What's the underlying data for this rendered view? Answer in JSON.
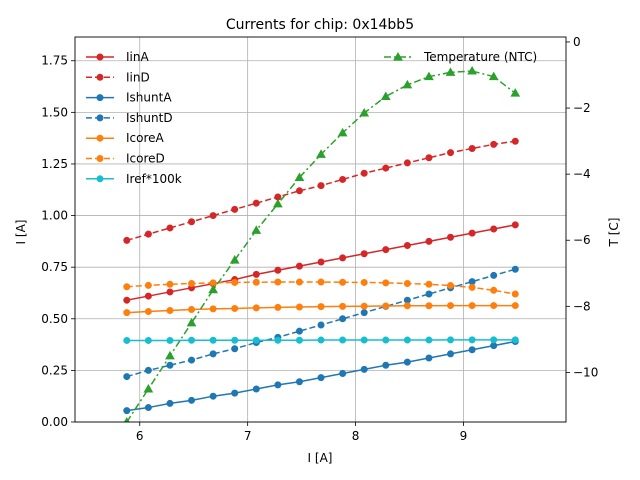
{
  "chart_data": {
    "type": "line",
    "title": "Currents for chip: 0x14bb5",
    "xlabel": "I [A]",
    "ylabel": "I [A]",
    "y2label": "T [C]",
    "xlim": [
      5.4,
      9.95
    ],
    "ylim": [
      0.0,
      1.865
    ],
    "y2lim": [
      -11.5,
      0.15
    ],
    "xticks": [
      6,
      7,
      8,
      9
    ],
    "xtick_labels": [
      "6",
      "7",
      "8",
      "9"
    ],
    "yticks": [
      0.0,
      0.25,
      0.5,
      0.75,
      1.0,
      1.25,
      1.5,
      1.75
    ],
    "ytick_labels": [
      "0.00",
      "0.25",
      "0.50",
      "0.75",
      "1.00",
      "1.25",
      "1.50",
      "1.75"
    ],
    "y2ticks": [
      -10,
      -8,
      -6,
      -4,
      -2,
      0
    ],
    "y2tick_labels": [
      "−10",
      "−8",
      "−6",
      "−4",
      "−2",
      "0"
    ],
    "grid": true,
    "x": [
      5.88,
      6.08,
      6.28,
      6.48,
      6.68,
      6.88,
      7.08,
      7.28,
      7.48,
      7.68,
      7.88,
      8.08,
      8.28,
      8.48,
      8.68,
      8.88,
      9.08,
      9.28,
      9.48
    ],
    "series": [
      {
        "name": "IinA",
        "axis": "left",
        "color": "#d62728",
        "dash": "solid",
        "marker": "circle",
        "values": [
          0.59,
          0.61,
          0.63,
          0.65,
          0.67,
          0.69,
          0.715,
          0.735,
          0.755,
          0.775,
          0.795,
          0.815,
          0.835,
          0.855,
          0.875,
          0.895,
          0.915,
          0.935,
          0.955
        ]
      },
      {
        "name": "IinD",
        "axis": "left",
        "color": "#d62728",
        "dash": "dashed",
        "marker": "circle",
        "values": [
          0.88,
          0.91,
          0.94,
          0.97,
          1.0,
          1.03,
          1.06,
          1.09,
          1.12,
          1.145,
          1.175,
          1.205,
          1.23,
          1.255,
          1.28,
          1.305,
          1.325,
          1.345,
          1.36
        ]
      },
      {
        "name": "IshuntA",
        "axis": "left",
        "color": "#1f77b4",
        "dash": "solid",
        "marker": "circle",
        "values": [
          0.055,
          0.07,
          0.09,
          0.105,
          0.125,
          0.14,
          0.16,
          0.18,
          0.195,
          0.215,
          0.235,
          0.255,
          0.275,
          0.29,
          0.31,
          0.33,
          0.35,
          0.37,
          0.39
        ]
      },
      {
        "name": "IshuntD",
        "axis": "left",
        "color": "#1f77b4",
        "dash": "dashed",
        "marker": "circle",
        "values": [
          0.22,
          0.25,
          0.275,
          0.3,
          0.33,
          0.355,
          0.385,
          0.41,
          0.44,
          0.47,
          0.5,
          0.53,
          0.56,
          0.59,
          0.62,
          0.65,
          0.68,
          0.71,
          0.74
        ]
      },
      {
        "name": "IcoreA",
        "axis": "left",
        "color": "#ff7f0e",
        "dash": "solid",
        "marker": "circle",
        "values": [
          0.53,
          0.535,
          0.54,
          0.545,
          0.548,
          0.55,
          0.553,
          0.555,
          0.557,
          0.559,
          0.56,
          0.561,
          0.562,
          0.563,
          0.563,
          0.564,
          0.564,
          0.564,
          0.564
        ]
      },
      {
        "name": "IcoreD",
        "axis": "left",
        "color": "#ff7f0e",
        "dash": "dashed",
        "marker": "circle",
        "values": [
          0.655,
          0.662,
          0.667,
          0.671,
          0.674,
          0.676,
          0.677,
          0.678,
          0.678,
          0.678,
          0.677,
          0.676,
          0.674,
          0.671,
          0.667,
          0.661,
          0.652,
          0.638,
          0.62
        ]
      },
      {
        "name": "Iref*100k",
        "axis": "left",
        "color": "#17becf",
        "dash": "solid",
        "marker": "circle",
        "values": [
          0.395,
          0.395,
          0.395,
          0.396,
          0.396,
          0.396,
          0.396,
          0.396,
          0.396,
          0.397,
          0.397,
          0.397,
          0.397,
          0.397,
          0.397,
          0.398,
          0.398,
          0.398,
          0.398
        ]
      },
      {
        "name": "Temperature (NTC)",
        "axis": "right",
        "color": "#2ca02c",
        "dash": "dashdot",
        "marker": "triangle",
        "values": [
          -11.5,
          -10.5,
          -9.5,
          -8.5,
          -7.5,
          -6.6,
          -5.7,
          -4.9,
          -4.1,
          -3.4,
          -2.75,
          -2.15,
          -1.65,
          -1.3,
          -1.05,
          -0.92,
          -0.88,
          -1.05,
          -1.55
        ]
      }
    ],
    "legend_left": [
      "IinA",
      "IinD",
      "IshuntA",
      "IshuntD",
      "IcoreA",
      "IcoreD",
      "Iref*100k"
    ],
    "legend_right": [
      "Temperature (NTC)"
    ],
    "legend_left_placement": "upper-left",
    "legend_right_placement": "upper-right"
  }
}
